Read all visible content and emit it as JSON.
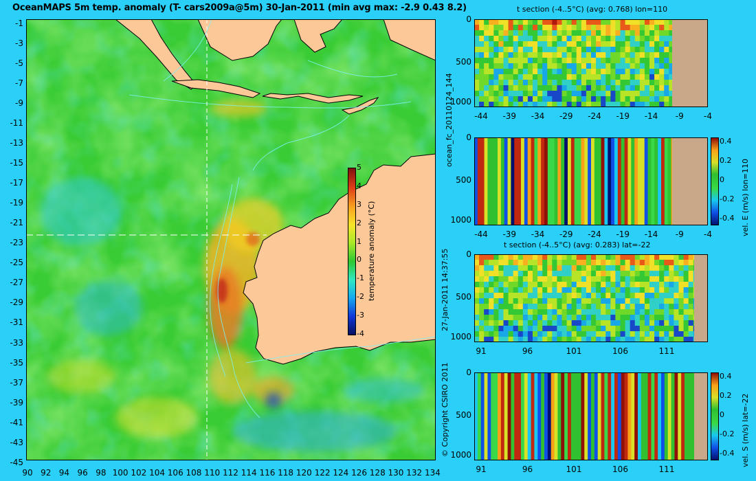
{
  "title": "OceanMAPS 5m temp. anomaly (T- cars2009a@5m) 30-Jan-2011 (min avg max: -2.9 0.43 8.2)",
  "map": {
    "lat_ticks": [
      "-1",
      "-3",
      "-5",
      "-7",
      "-9",
      "-11",
      "-13",
      "-15",
      "-17",
      "-19",
      "-21",
      "-23",
      "-25",
      "-27",
      "-29",
      "-31",
      "-33",
      "-35",
      "-37",
      "-39",
      "-41",
      "-43",
      "-45"
    ],
    "lon_ticks": [
      "90",
      "92",
      "94",
      "96",
      "98",
      "100",
      "102",
      "104",
      "106",
      "108",
      "110",
      "112",
      "114",
      "116",
      "118",
      "120",
      "122",
      "124",
      "126",
      "128",
      "130",
      "132",
      "134"
    ],
    "section_lon": 110,
    "section_lat": -22,
    "colorbar": {
      "label": "temperature anomaly (°C)",
      "ticks": [
        "5",
        "4",
        "3",
        "2",
        "1",
        "0",
        "-1",
        "-2",
        "-3",
        "-4"
      ]
    },
    "run_label": "27-Jan-2011 14:37:55",
    "copyright": "© Copyright CSIRO 2011"
  },
  "panels": {
    "p1": {
      "title": "t section (-4..5°C) (avg: 0.768) lon=110",
      "yticks": [
        "0",
        "500",
        "1000"
      ],
      "xticks": [
        "-44",
        "-39",
        "-34",
        "-29",
        "-24",
        "-19",
        "-14",
        "-9",
        "-4"
      ]
    },
    "p2": {
      "yticks": [
        "0",
        "500",
        "1000"
      ],
      "xticks": [
        "-44",
        "-39",
        "-34",
        "-29",
        "-24",
        "-19",
        "-14",
        "-9",
        "-4"
      ],
      "side_label": "ocean_fc_20110124_144",
      "cbar_label": "vel. E (m/s) lon=110",
      "cbar_ticks": [
        "0.4",
        "0.2",
        "0",
        "-0.2",
        "-0.4"
      ]
    },
    "p3": {
      "title": "t section (-4..5°C) (avg: 0.283) lat=-22",
      "yticks": [
        "0",
        "500",
        "1000"
      ],
      "xticks": [
        "91",
        "96",
        "101",
        "106",
        "111"
      ]
    },
    "p4": {
      "yticks": [
        "0",
        "500",
        "1000"
      ],
      "xticks": [
        "91",
        "96",
        "101",
        "106",
        "111"
      ],
      "cbar_label": "vel. S (m/s) lat=-22",
      "cbar_ticks": [
        "0.4",
        "0.2",
        "0",
        "-0.2",
        "-0.4"
      ]
    }
  },
  "colors": {
    "background": "#2ad0f8",
    "land": "#fcc898",
    "section_land": "#c8a888",
    "coast": "#000000"
  }
}
